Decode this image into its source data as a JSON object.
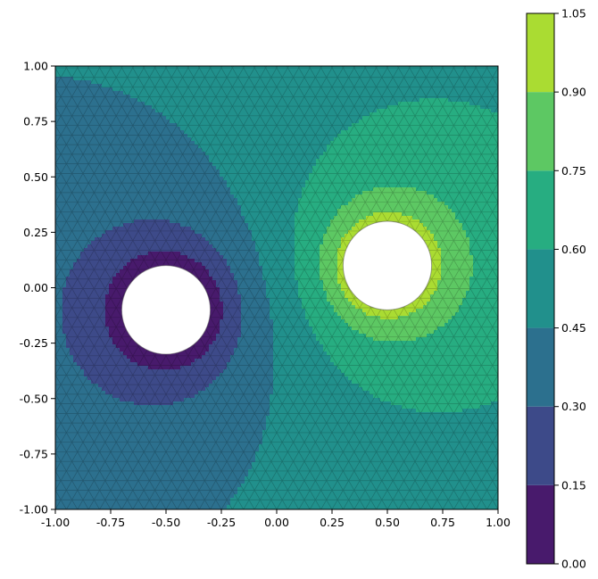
{
  "chart_data": {
    "type": "heatmap",
    "subtype": "filled-contour (tricontourf on triangular mesh)",
    "title": "",
    "xlabel": "",
    "ylabel": "",
    "xlim": [
      -1.0,
      1.0
    ],
    "ylim": [
      -1.0,
      1.0
    ],
    "x_ticks": [
      "-1.00",
      "-0.75",
      "-0.50",
      "-0.25",
      "0.00",
      "0.25",
      "0.50",
      "0.75",
      "1.00"
    ],
    "y_ticks": [
      "-1.00",
      "-0.75",
      "-0.50",
      "-0.25",
      "0.00",
      "0.25",
      "0.50",
      "0.75",
      "1.00"
    ],
    "x_tick_values": [
      -1.0,
      -0.75,
      -0.5,
      -0.25,
      0.0,
      0.25,
      0.5,
      0.75,
      1.0
    ],
    "y_tick_values": [
      -1.0,
      -0.75,
      -0.5,
      -0.25,
      0.0,
      0.25,
      0.5,
      0.75,
      1.0
    ],
    "holes": [
      {
        "center": [
          -0.5,
          -0.1
        ],
        "radius": 0.2
      },
      {
        "center": [
          0.5,
          0.1
        ],
        "radius": 0.2
      }
    ],
    "field": "potential ≈ 0 on left hole, ≈ 1 on right hole",
    "grid": false,
    "mesh_visible": true,
    "colorbar": {
      "levels": [
        0.0,
        0.15,
        0.3,
        0.45,
        0.6,
        0.75,
        0.9,
        1.05
      ],
      "tick_labels": [
        "0.00",
        "0.15",
        "0.30",
        "0.45",
        "0.60",
        "0.75",
        "0.90",
        "1.05"
      ],
      "colors": [
        "#481a6c",
        "#3d4a89",
        "#2c708e",
        "#21908c",
        "#27ad81",
        "#5dc863",
        "#aadc32",
        "#e1dd37"
      ],
      "placement": "right"
    }
  }
}
